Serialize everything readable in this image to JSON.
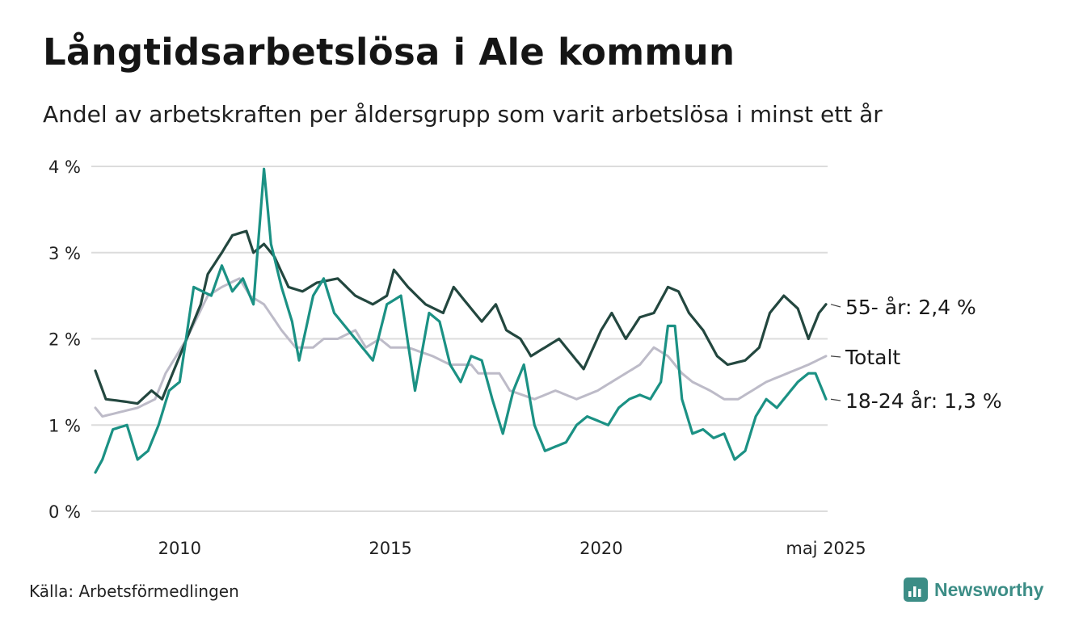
{
  "title": "Långtidsarbetslösa i Ale kommun",
  "subtitle": "Andel av arbetskraften per åldersgrupp som varit arbetslösa i minst ett år",
  "source": "Källa: Arbetsförmedlingen",
  "brand": "Newsworthy",
  "brand_icon": "newsworthy-logo-icon",
  "colors": {
    "s55": "#23473f",
    "total": "#bdbbc8",
    "youth": "#1b9184",
    "grid": "#dcdcdc",
    "brand": "#3c8d86"
  },
  "chart_data": {
    "type": "line",
    "title": "Långtidsarbetslösa i Ale kommun",
    "xlabel": "",
    "ylabel": "",
    "x_start": "2008-01",
    "x_end": "2025-05",
    "x_step": "month",
    "x_ticks": [
      {
        "x": "2010-01",
        "label": "2010"
      },
      {
        "x": "2015-01",
        "label": "2015"
      },
      {
        "x": "2020-01",
        "label": "2020"
      },
      {
        "x": "2025-05",
        "label": "maj 2025"
      }
    ],
    "y_ticks": [
      {
        "v": 0,
        "label": "0 %"
      },
      {
        "v": 1,
        "label": "1 %"
      },
      {
        "v": 2,
        "label": "2 %"
      },
      {
        "v": 3,
        "label": "3 %"
      },
      {
        "v": 4,
        "label": "4 %"
      }
    ],
    "ylim": [
      0,
      4
    ],
    "grid": true,
    "legend": "end-labels",
    "series": [
      {
        "key": "total",
        "label": "Totalt",
        "color": "#bdbbc8",
        "keyframes": [
          [
            "2008-01",
            1.2
          ],
          [
            "2008-03",
            1.1
          ],
          [
            "2009-01",
            1.2
          ],
          [
            "2009-06",
            1.3
          ],
          [
            "2009-09",
            1.6
          ],
          [
            "2010-03",
            2.0
          ],
          [
            "2010-09",
            2.5
          ],
          [
            "2011-01",
            2.6
          ],
          [
            "2011-06",
            2.7
          ],
          [
            "2011-09",
            2.5
          ],
          [
            "2012-01",
            2.4
          ],
          [
            "2012-06",
            2.1
          ],
          [
            "2012-10",
            1.9
          ],
          [
            "2013-03",
            1.9
          ],
          [
            "2013-06",
            2.0
          ],
          [
            "2013-10",
            2.0
          ],
          [
            "2014-03",
            2.1
          ],
          [
            "2014-06",
            1.9
          ],
          [
            "2014-10",
            2.0
          ],
          [
            "2015-01",
            1.9
          ],
          [
            "2015-06",
            1.9
          ],
          [
            "2016-01",
            1.8
          ],
          [
            "2016-06",
            1.7
          ],
          [
            "2016-12",
            1.7
          ],
          [
            "2017-02",
            1.6
          ],
          [
            "2017-08",
            1.6
          ],
          [
            "2017-11",
            1.4
          ],
          [
            "2018-06",
            1.3
          ],
          [
            "2018-12",
            1.4
          ],
          [
            "2019-06",
            1.3
          ],
          [
            "2019-12",
            1.4
          ],
          [
            "2020-04",
            1.5
          ],
          [
            "2020-08",
            1.6
          ],
          [
            "2020-12",
            1.7
          ],
          [
            "2021-04",
            1.9
          ],
          [
            "2021-08",
            1.8
          ],
          [
            "2021-12",
            1.6
          ],
          [
            "2022-03",
            1.5
          ],
          [
            "2022-08",
            1.4
          ],
          [
            "2022-12",
            1.3
          ],
          [
            "2023-04",
            1.3
          ],
          [
            "2023-08",
            1.4
          ],
          [
            "2023-12",
            1.5
          ],
          [
            "2024-06",
            1.6
          ],
          [
            "2024-12",
            1.7
          ],
          [
            "2025-05",
            1.8
          ]
        ]
      },
      {
        "key": "s55",
        "label": "55- år: 2,4 %",
        "color": "#23473f",
        "keyframes": [
          [
            "2008-01",
            1.63
          ],
          [
            "2008-04",
            1.3
          ],
          [
            "2008-08",
            1.28
          ],
          [
            "2009-01",
            1.25
          ],
          [
            "2009-05",
            1.4
          ],
          [
            "2009-08",
            1.3
          ],
          [
            "2009-11",
            1.6
          ],
          [
            "2010-03",
            2.0
          ],
          [
            "2010-07",
            2.4
          ],
          [
            "2010-09",
            2.75
          ],
          [
            "2011-01",
            3.0
          ],
          [
            "2011-04",
            3.2
          ],
          [
            "2011-08",
            3.25
          ],
          [
            "2011-10",
            3.0
          ],
          [
            "2012-01",
            3.1
          ],
          [
            "2012-04",
            2.95
          ],
          [
            "2012-08",
            2.6
          ],
          [
            "2012-12",
            2.55
          ],
          [
            "2013-04",
            2.65
          ],
          [
            "2013-10",
            2.7
          ],
          [
            "2014-03",
            2.5
          ],
          [
            "2014-08",
            2.4
          ],
          [
            "2014-12",
            2.5
          ],
          [
            "2015-02",
            2.8
          ],
          [
            "2015-06",
            2.6
          ],
          [
            "2015-11",
            2.4
          ],
          [
            "2016-04",
            2.3
          ],
          [
            "2016-07",
            2.6
          ],
          [
            "2016-11",
            2.4
          ],
          [
            "2017-03",
            2.2
          ],
          [
            "2017-07",
            2.4
          ],
          [
            "2017-10",
            2.1
          ],
          [
            "2018-02",
            2.0
          ],
          [
            "2018-05",
            1.8
          ],
          [
            "2018-09",
            1.9
          ],
          [
            "2019-01",
            2.0
          ],
          [
            "2019-05",
            1.8
          ],
          [
            "2019-08",
            1.65
          ],
          [
            "2020-01",
            2.1
          ],
          [
            "2020-04",
            2.3
          ],
          [
            "2020-08",
            2.0
          ],
          [
            "2020-12",
            2.25
          ],
          [
            "2021-04",
            2.3
          ],
          [
            "2021-08",
            2.6
          ],
          [
            "2021-11",
            2.55
          ],
          [
            "2022-02",
            2.3
          ],
          [
            "2022-06",
            2.1
          ],
          [
            "2022-10",
            1.8
          ],
          [
            "2023-01",
            1.7
          ],
          [
            "2023-06",
            1.75
          ],
          [
            "2023-10",
            1.9
          ],
          [
            "2024-01",
            2.3
          ],
          [
            "2024-05",
            2.5
          ],
          [
            "2024-09",
            2.35
          ],
          [
            "2024-12",
            2.0
          ],
          [
            "2025-03",
            2.3
          ],
          [
            "2025-05",
            2.4
          ]
        ]
      },
      {
        "key": "youth",
        "label": "18-24 år: 1,3 %",
        "color": "#1b9184",
        "keyframes": [
          [
            "2008-01",
            0.45
          ],
          [
            "2008-03",
            0.6
          ],
          [
            "2008-06",
            0.95
          ],
          [
            "2008-10",
            1.0
          ],
          [
            "2009-01",
            0.6
          ],
          [
            "2009-04",
            0.7
          ],
          [
            "2009-07",
            1.0
          ],
          [
            "2009-10",
            1.4
          ],
          [
            "2010-01",
            1.5
          ],
          [
            "2010-05",
            2.6
          ],
          [
            "2010-10",
            2.5
          ],
          [
            "2011-01",
            2.85
          ],
          [
            "2011-04",
            2.55
          ],
          [
            "2011-07",
            2.7
          ],
          [
            "2011-10",
            2.4
          ],
          [
            "2012-01",
            3.97
          ],
          [
            "2012-03",
            3.1
          ],
          [
            "2012-06",
            2.6
          ],
          [
            "2012-09",
            2.2
          ],
          [
            "2012-11",
            1.75
          ],
          [
            "2013-03",
            2.5
          ],
          [
            "2013-06",
            2.7
          ],
          [
            "2013-09",
            2.3
          ],
          [
            "2014-01",
            2.1
          ],
          [
            "2014-04",
            1.95
          ],
          [
            "2014-08",
            1.75
          ],
          [
            "2014-12",
            2.4
          ],
          [
            "2015-04",
            2.5
          ],
          [
            "2015-08",
            1.4
          ],
          [
            "2015-12",
            2.3
          ],
          [
            "2016-03",
            2.2
          ],
          [
            "2016-06",
            1.7
          ],
          [
            "2016-09",
            1.5
          ],
          [
            "2016-12",
            1.8
          ],
          [
            "2017-03",
            1.75
          ],
          [
            "2017-06",
            1.3
          ],
          [
            "2017-09",
            0.9
          ],
          [
            "2017-12",
            1.4
          ],
          [
            "2018-03",
            1.7
          ],
          [
            "2018-06",
            1.0
          ],
          [
            "2018-09",
            0.7
          ],
          [
            "2018-12",
            0.75
          ],
          [
            "2019-03",
            0.8
          ],
          [
            "2019-06",
            1.0
          ],
          [
            "2019-09",
            1.1
          ],
          [
            "2019-12",
            1.05
          ],
          [
            "2020-03",
            1.0
          ],
          [
            "2020-06",
            1.2
          ],
          [
            "2020-09",
            1.3
          ],
          [
            "2020-12",
            1.35
          ],
          [
            "2021-03",
            1.3
          ],
          [
            "2021-06",
            1.5
          ],
          [
            "2021-08",
            2.15
          ],
          [
            "2021-10",
            2.15
          ],
          [
            "2021-12",
            1.3
          ],
          [
            "2022-03",
            0.9
          ],
          [
            "2022-06",
            0.95
          ],
          [
            "2022-09",
            0.85
          ],
          [
            "2022-12",
            0.9
          ],
          [
            "2023-03",
            0.6
          ],
          [
            "2023-06",
            0.7
          ],
          [
            "2023-09",
            1.1
          ],
          [
            "2023-12",
            1.3
          ],
          [
            "2024-03",
            1.2
          ],
          [
            "2024-06",
            1.35
          ],
          [
            "2024-09",
            1.5
          ],
          [
            "2024-12",
            1.6
          ],
          [
            "2025-02",
            1.6
          ],
          [
            "2025-05",
            1.3
          ]
        ]
      }
    ]
  }
}
